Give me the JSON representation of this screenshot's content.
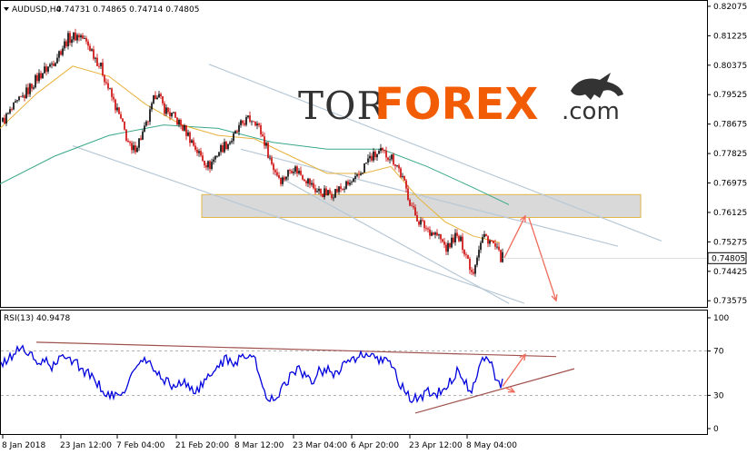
{
  "header": {
    "symbol_label": "AUDUSD,H4",
    "ohlc_label": "0.74731 0.74865 0.74714 0.74805",
    "current_price_label": "0.74805"
  },
  "logo": {
    "text_tor": "TOR",
    "text_forex": "FOREX",
    "text_com": ".com"
  },
  "colors": {
    "bull_candle": "#000000",
    "bear_candle": "#cc0000",
    "ma_fast": "#e8b23c",
    "ma_slow": "#3aa88a",
    "channel": "#b7c8d6",
    "resistance_zone_fill": "#d9d9d9",
    "resistance_zone_border": "#e2b64a",
    "forecast_arrow": "#ef6a5a",
    "rsi_line": "#0000dd",
    "rsi_trendline": "#a0524d",
    "logo_dark": "#333333",
    "logo_orange": "#f25c05"
  },
  "chart_data": [
    {
      "type": "candlestick",
      "title": "AUDUSD,H4",
      "x_tick_labels": [
        "8 Jan 2018",
        "23 Jan 12:00",
        "7 Feb 04:00",
        "21 Feb 20:00",
        "8 Mar 12:00",
        "23 Mar 04:00",
        "6 Apr 20:00",
        "23 Apr 12:00",
        "8 May 04:00"
      ],
      "y_tick_labels": [
        "0.82075",
        "0.81225",
        "0.80375",
        "0.79525",
        "0.78675",
        "0.77825",
        "0.76975",
        "0.76125",
        "0.75275",
        "0.74425",
        "0.73575"
      ],
      "ylim": [
        0.7345,
        0.821
      ],
      "current_price": 0.74805,
      "grid": false,
      "close_path": [
        [
          0,
          0.7865
        ],
        [
          12,
          0.7905
        ],
        [
          25,
          0.7945
        ],
        [
          42,
          0.8005
        ],
        [
          58,
          0.8045
        ],
        [
          75,
          0.8115
        ],
        [
          88,
          0.8125
        ],
        [
          100,
          0.8085
        ],
        [
          112,
          0.8025
        ],
        [
          120,
          0.7965
        ],
        [
          132,
          0.7885
        ],
        [
          145,
          0.7785
        ],
        [
          152,
          0.7815
        ],
        [
          160,
          0.7855
        ],
        [
          166,
          0.7905
        ],
        [
          172,
          0.7965
        ],
        [
          180,
          0.7915
        ],
        [
          192,
          0.7885
        ],
        [
          205,
          0.7845
        ],
        [
          218,
          0.7785
        ],
        [
          230,
          0.7745
        ],
        [
          242,
          0.7795
        ],
        [
          256,
          0.7825
        ],
        [
          268,
          0.7875
        ],
        [
          280,
          0.7885
        ],
        [
          290,
          0.7825
        ],
        [
          300,
          0.7745
        ],
        [
          310,
          0.7705
        ],
        [
          322,
          0.7745
        ],
        [
          335,
          0.7715
        ],
        [
          348,
          0.7675
        ],
        [
          362,
          0.7665
        ],
        [
          378,
          0.7685
        ],
        [
          392,
          0.7705
        ],
        [
          405,
          0.7765
        ],
        [
          418,
          0.7785
        ],
        [
          430,
          0.7775
        ],
        [
          438,
          0.7745
        ],
        [
          446,
          0.7685
        ],
        [
          455,
          0.7615
        ],
        [
          462,
          0.7585
        ],
        [
          470,
          0.7565
        ],
        [
          482,
          0.7545
        ],
        [
          492,
          0.7505
        ],
        [
          500,
          0.7545
        ],
        [
          508,
          0.7525
        ],
        [
          514,
          0.7485
        ],
        [
          520,
          0.7435
        ],
        [
          526,
          0.7505
        ],
        [
          532,
          0.7545
        ],
        [
          538,
          0.7535
        ],
        [
          544,
          0.7515
        ],
        [
          550,
          0.7485
        ],
        [
          553,
          0.7482
        ]
      ],
      "ma_fast_path": [
        [
          0,
          0.7855
        ],
        [
          40,
          0.7955
        ],
        [
          80,
          0.8035
        ],
        [
          120,
          0.8005
        ],
        [
          160,
          0.7925
        ],
        [
          200,
          0.7865
        ],
        [
          240,
          0.7835
        ],
        [
          280,
          0.7825
        ],
        [
          320,
          0.7775
        ],
        [
          360,
          0.7725
        ],
        [
          400,
          0.7725
        ],
        [
          430,
          0.7745
        ],
        [
          460,
          0.7655
        ],
        [
          490,
          0.7585
        ],
        [
          520,
          0.7545
        ],
        [
          550,
          0.7525
        ]
      ],
      "ma_slow_path": [
        [
          0,
          0.7695
        ],
        [
          60,
          0.7775
        ],
        [
          120,
          0.7835
        ],
        [
          180,
          0.7865
        ],
        [
          240,
          0.7855
        ],
        [
          300,
          0.7815
        ],
        [
          360,
          0.7795
        ],
        [
          420,
          0.7795
        ],
        [
          470,
          0.7745
        ],
        [
          520,
          0.7685
        ],
        [
          560,
          0.7635
        ]
      ],
      "resistance_zone": [
        0.7598,
        0.7664
      ],
      "channel_lines": [
        [
          [
            230,
            0.804
          ],
          [
            728,
            0.753
          ]
        ],
        [
          [
            265,
            0.7795
          ],
          [
            680,
            0.7515
          ]
        ],
        [
          [
            300,
            0.7725
          ],
          [
            560,
            0.735
          ]
        ],
        [
          [
            80,
            0.7805
          ],
          [
            577,
            0.735
          ]
        ]
      ],
      "forecast_path": [
        [
          555,
          0.7482
        ],
        [
          578,
          0.7602
        ],
        [
          612,
          0.7358
        ]
      ]
    },
    {
      "type": "line",
      "title": "RSI(13) 40.9478",
      "y_tick_labels": [
        "100",
        "70",
        "30",
        "0"
      ],
      "ylim": [
        0,
        100
      ],
      "levels": [
        70,
        30
      ],
      "grid": false,
      "rsi_path": [
        [
          0,
          55
        ],
        [
          8,
          62
        ],
        [
          16,
          68
        ],
        [
          24,
          74
        ],
        [
          32,
          68
        ],
        [
          40,
          58
        ],
        [
          48,
          62
        ],
        [
          56,
          55
        ],
        [
          64,
          60
        ],
        [
          72,
          68
        ],
        [
          80,
          62
        ],
        [
          88,
          56
        ],
        [
          96,
          50
        ],
        [
          104,
          44
        ],
        [
          112,
          36
        ],
        [
          120,
          30
        ],
        [
          128,
          28
        ],
        [
          136,
          34
        ],
        [
          144,
          46
        ],
        [
          152,
          58
        ],
        [
          160,
          62
        ],
        [
          168,
          54
        ],
        [
          176,
          48
        ],
        [
          184,
          42
        ],
        [
          192,
          38
        ],
        [
          200,
          42
        ],
        [
          208,
          38
        ],
        [
          216,
          34
        ],
        [
          224,
          40
        ],
        [
          232,
          48
        ],
        [
          240,
          58
        ],
        [
          248,
          62
        ],
        [
          256,
          58
        ],
        [
          264,
          64
        ],
        [
          272,
          68
        ],
        [
          280,
          64
        ],
        [
          288,
          38
        ],
        [
          296,
          24
        ],
        [
          304,
          30
        ],
        [
          312,
          38
        ],
        [
          320,
          48
        ],
        [
          328,
          54
        ],
        [
          336,
          46
        ],
        [
          344,
          44
        ],
        [
          352,
          52
        ],
        [
          360,
          54
        ],
        [
          368,
          50
        ],
        [
          376,
          56
        ],
        [
          384,
          62
        ],
        [
          392,
          60
        ],
        [
          400,
          68
        ],
        [
          408,
          64
        ],
        [
          416,
          60
        ],
        [
          424,
          66
        ],
        [
          432,
          56
        ],
        [
          440,
          40
        ],
        [
          448,
          30
        ],
        [
          456,
          26
        ],
        [
          464,
          30
        ],
        [
          472,
          34
        ],
        [
          480,
          30
        ],
        [
          488,
          36
        ],
        [
          496,
          44
        ],
        [
          504,
          52
        ],
        [
          512,
          40
        ],
        [
          520,
          36
        ],
        [
          528,
          56
        ],
        [
          534,
          68
        ],
        [
          540,
          62
        ],
        [
          546,
          44
        ],
        [
          550,
          38
        ],
        [
          553,
          41
        ]
      ],
      "trendline_upper": [
        [
          40,
          78
        ],
        [
          612,
          65
        ]
      ],
      "trendline_lower": [
        [
          457,
          14
        ],
        [
          632,
          54
        ]
      ],
      "forecast_path": [
        [
          553,
          38
        ],
        [
          578,
          67
        ]
      ]
    }
  ]
}
